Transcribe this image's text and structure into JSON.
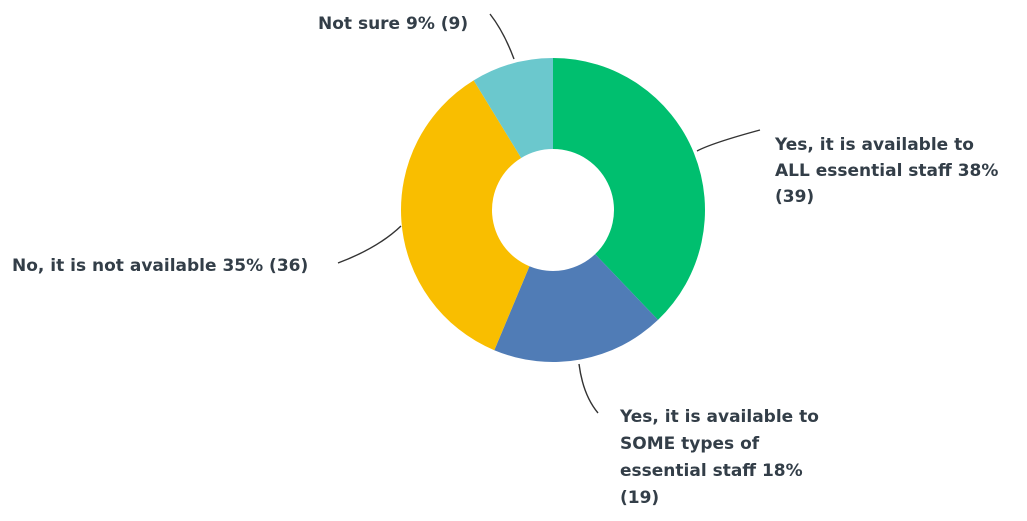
{
  "chart_data": {
    "type": "pie",
    "donut": true,
    "slices": [
      {
        "label_lines": [
          "Yes, it is available to",
          "ALL essential staff 38%",
          "(39)"
        ],
        "percent": 38,
        "count": 39,
        "color": "#00bf6f"
      },
      {
        "label_lines": [
          "Yes, it is available to",
          "SOME types of",
          "essential staff 18%",
          "(19)"
        ],
        "percent": 18,
        "count": 19,
        "color": "#507cb6"
      },
      {
        "label_lines": [
          "No, it is not available 35% (36)"
        ],
        "percent": 35,
        "count": 36,
        "color": "#f9be00"
      },
      {
        "label_lines": [
          "Not sure 9% (9)"
        ],
        "percent": 9,
        "count": 9,
        "color": "#6bc8cd"
      }
    ]
  }
}
